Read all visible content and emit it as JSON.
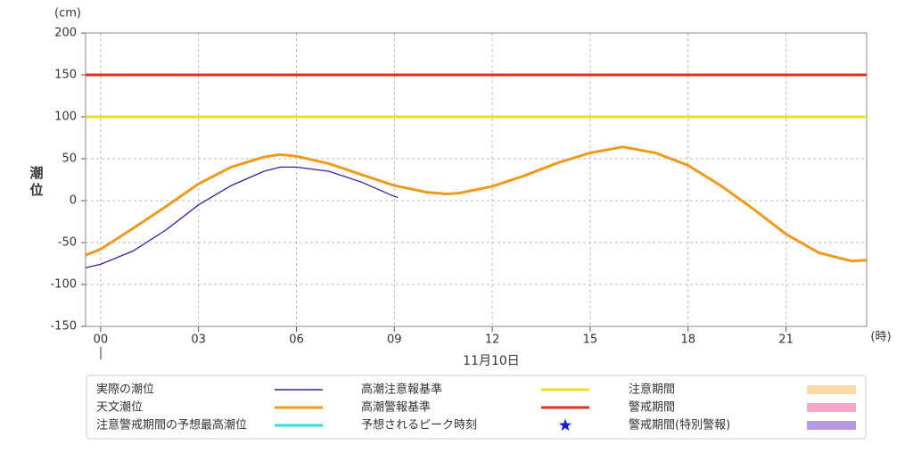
{
  "chart_data": {
    "type": "line",
    "ylabel": "潮位",
    "yunit": "(cm)",
    "xunit": "(時)",
    "date_label": "11月10日",
    "xlim": [
      -0.46,
      23.47
    ],
    "ylim": [
      -150,
      200
    ],
    "xticks": [
      {
        "value": 0,
        "label": "00"
      },
      {
        "value": 3,
        "label": "03"
      },
      {
        "value": 6,
        "label": "06"
      },
      {
        "value": 9,
        "label": "09"
      },
      12,
      15,
      18,
      21
    ],
    "yticks": [
      -150,
      -100,
      -50,
      0,
      50,
      100,
      150,
      200
    ],
    "grid": true,
    "series": [
      {
        "name": "実際の潮位",
        "color": "#3d1a9e",
        "x": [
          -0.46,
          0,
          1,
          2,
          3,
          4,
          5,
          5.5,
          6,
          7,
          8,
          9,
          9.1
        ],
        "values": [
          -80,
          -76,
          -60,
          -35,
          -5,
          18,
          35,
          40,
          40,
          35,
          22,
          5,
          4
        ]
      },
      {
        "name": "天文潮位",
        "color": "#f09a1c",
        "x": [
          -0.46,
          0,
          1,
          2,
          3,
          4,
          5,
          5.5,
          6,
          7,
          8,
          9,
          10,
          10.6,
          11,
          12,
          13,
          14,
          15,
          16,
          17,
          18,
          19,
          20,
          21,
          22,
          23,
          23.47
        ],
        "values": [
          -65,
          -58,
          -33,
          -7,
          20,
          40,
          52,
          55,
          53,
          44,
          31,
          18,
          10,
          8,
          9,
          17,
          30,
          45,
          57,
          64,
          57,
          42,
          18,
          -10,
          -40,
          -62,
          -72,
          -71
        ]
      }
    ],
    "reference_lines": [
      {
        "name": "高潮注意報基準",
        "color": "#e8e020",
        "value": 100
      },
      {
        "name": "高潮警報基準",
        "color": "#e0301e",
        "value": 150
      }
    ],
    "legend_extra": [
      {
        "name": "注意警戒期間の予想最高潮位",
        "color": "#30e0e8",
        "symbol": "line"
      },
      {
        "name": "予想されるピーク時刻",
        "color": "#1020d8",
        "symbol": "star"
      },
      {
        "name": "注意期間",
        "color": "#fdd9a8",
        "symbol": "rect"
      },
      {
        "name": "警戒期間",
        "color": "#f7a8c8",
        "symbol": "rect"
      },
      {
        "name": "警戒期間(特別警報)",
        "color": "#b89ae0",
        "symbol": "rect"
      }
    ]
  }
}
